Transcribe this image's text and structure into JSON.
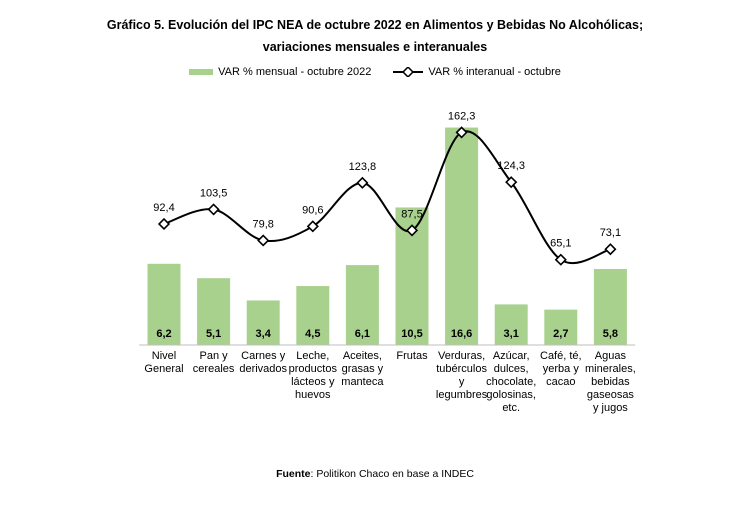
{
  "chart_data": {
    "type": "bar+line",
    "title": "Gráfico 5. Evolución del IPC NEA de octubre 2022 en Alimentos y Bebidas No Alcohólicas;",
    "subtitle": "variaciones mensuales e interanuales",
    "categories": [
      "Nivel\nGeneral",
      "Pan y\ncereales",
      "Carnes y\nderivados",
      "Leche,\nproductos\nlácteos y\nhuevos",
      "Aceites,\ngrasas y\nmanteca",
      "Frutas",
      "Verduras,\ntubérculos\ny\nlegumbres",
      "Azúcar,\ndulces,\nchocolate,\ngolosinas,\netc.",
      "Café, té,\nyerba y\ncacao",
      "Aguas\nminerales,\nbebidas\ngaseosas\ny jugos"
    ],
    "series": [
      {
        "name": "VAR % mensual - octubre 2022",
        "type": "bar",
        "axis": "primary",
        "color": "#a9d18e",
        "values": [
          6.2,
          5.1,
          3.4,
          4.5,
          6.1,
          10.5,
          16.6,
          3.1,
          2.7,
          5.8
        ],
        "labels": [
          "6,2",
          "5,1",
          "3,4",
          "4,5",
          "6,1",
          "10,5",
          "16,6",
          "3,1",
          "2,7",
          "5,8"
        ]
      },
      {
        "name": "VAR % interanual - octubre",
        "type": "line",
        "axis": "secondary",
        "color": "#000000",
        "marker": "diamond",
        "values": [
          92.4,
          103.5,
          79.8,
          90.6,
          123.8,
          87.5,
          162.3,
          124.3,
          65.1,
          73.1
        ],
        "labels": [
          "92,4",
          "103,5",
          "79,8",
          "90,6",
          "123,8",
          "87,5",
          "162,3",
          "124,3",
          "65,1",
          "73,1"
        ]
      }
    ],
    "ylim": [
      0,
      20
    ],
    "y2lim": [
      0,
      200
    ],
    "axes_visible": false,
    "grid": false,
    "legend": "top"
  },
  "source": {
    "label": "Fuente",
    "text": ": Politikon Chaco en base a INDEC"
  }
}
